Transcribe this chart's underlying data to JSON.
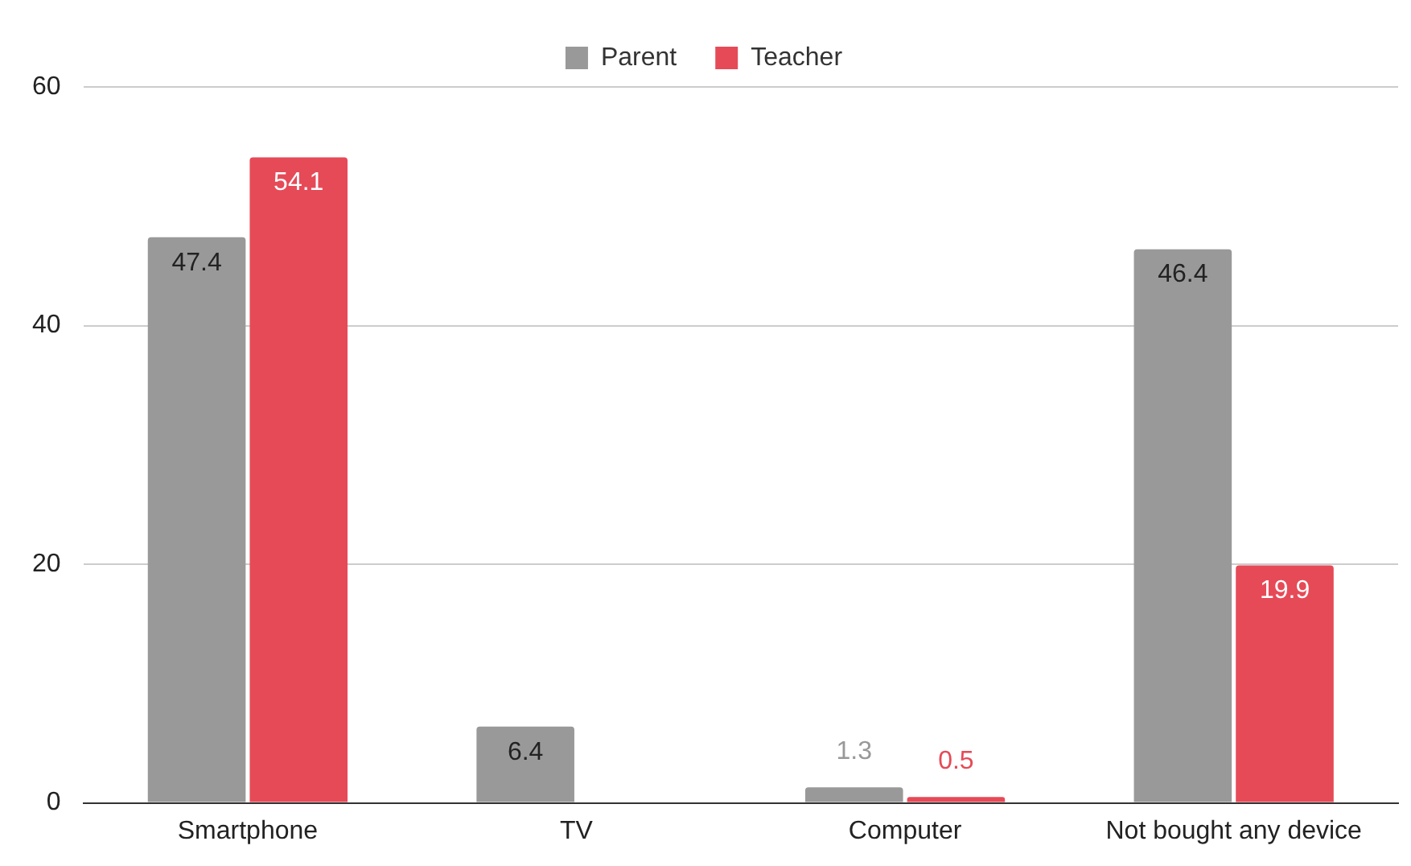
{
  "chart_data": {
    "type": "bar",
    "categories": [
      "Smartphone",
      "TV",
      "Computer",
      "Not bought any device"
    ],
    "series": [
      {
        "name": "Parent",
        "color": "#999999",
        "values": [
          47.4,
          6.4,
          1.3,
          46.4
        ]
      },
      {
        "name": "Teacher",
        "color": "#e64a57",
        "values": [
          54.1,
          null,
          0.5,
          19.9
        ]
      }
    ],
    "ylim": [
      0,
      60
    ],
    "yticks": [
      0,
      20,
      40,
      60
    ],
    "grid": "y",
    "legend": "top",
    "data_labels": true
  }
}
